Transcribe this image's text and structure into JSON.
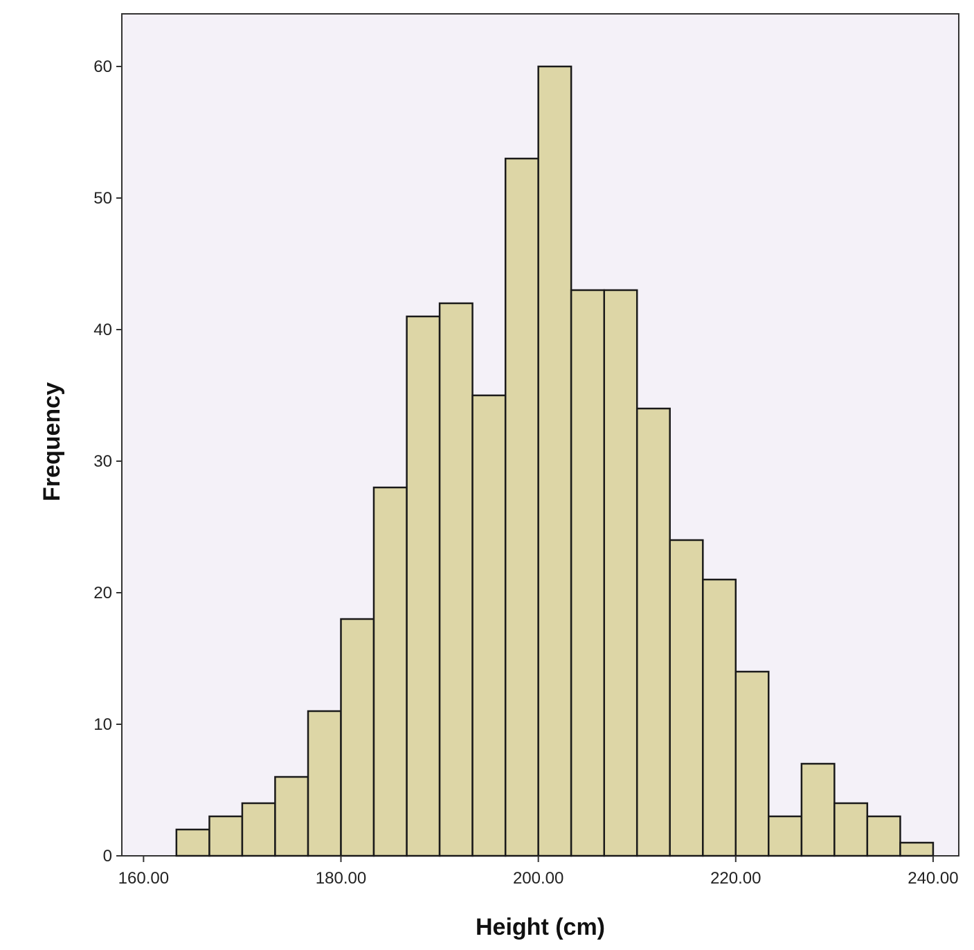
{
  "chart_data": {
    "type": "bar",
    "title": "",
    "xlabel": "Height (cm)",
    "ylabel": "Frequency",
    "xlim": [
      157.8,
      242.6
    ],
    "ylim": [
      0,
      64
    ],
    "grid": false,
    "legend": "none",
    "bin_width": 3.333,
    "x_ticks": [
      {
        "value": 160,
        "label": "160.00"
      },
      {
        "value": 180,
        "label": "180.00"
      },
      {
        "value": 200,
        "label": "200.00"
      },
      {
        "value": 220,
        "label": "220.00"
      },
      {
        "value": 240,
        "label": "240.00"
      }
    ],
    "y_ticks": [
      {
        "value": 0,
        "label": "0"
      },
      {
        "value": 10,
        "label": "10"
      },
      {
        "value": 20,
        "label": "20"
      },
      {
        "value": 30,
        "label": "30"
      },
      {
        "value": 40,
        "label": "40"
      },
      {
        "value": 50,
        "label": "50"
      },
      {
        "value": 60,
        "label": "60"
      }
    ],
    "bins": [
      {
        "x0": 163.33,
        "x1": 166.67,
        "count": 2
      },
      {
        "x0": 166.67,
        "x1": 170.0,
        "count": 3
      },
      {
        "x0": 170.0,
        "x1": 173.33,
        "count": 4
      },
      {
        "x0": 173.33,
        "x1": 176.67,
        "count": 6
      },
      {
        "x0": 176.67,
        "x1": 180.0,
        "count": 11
      },
      {
        "x0": 180.0,
        "x1": 183.33,
        "count": 18
      },
      {
        "x0": 183.33,
        "x1": 186.67,
        "count": 28
      },
      {
        "x0": 186.67,
        "x1": 190.0,
        "count": 41
      },
      {
        "x0": 190.0,
        "x1": 193.33,
        "count": 42
      },
      {
        "x0": 193.33,
        "x1": 196.67,
        "count": 35
      },
      {
        "x0": 196.67,
        "x1": 200.0,
        "count": 53
      },
      {
        "x0": 200.0,
        "x1": 203.33,
        "count": 60
      },
      {
        "x0": 203.33,
        "x1": 206.67,
        "count": 43
      },
      {
        "x0": 206.67,
        "x1": 210.0,
        "count": 43
      },
      {
        "x0": 210.0,
        "x1": 213.33,
        "count": 34
      },
      {
        "x0": 213.33,
        "x1": 216.67,
        "count": 24
      },
      {
        "x0": 216.67,
        "x1": 220.0,
        "count": 21
      },
      {
        "x0": 220.0,
        "x1": 223.33,
        "count": 14
      },
      {
        "x0": 223.33,
        "x1": 226.67,
        "count": 3
      },
      {
        "x0": 226.67,
        "x1": 230.0,
        "count": 7
      },
      {
        "x0": 230.0,
        "x1": 233.33,
        "count": 4
      },
      {
        "x0": 233.33,
        "x1": 236.67,
        "count": 3
      },
      {
        "x0": 236.67,
        "x1": 240.0,
        "count": 1
      }
    ],
    "colors": {
      "bar_fill": "#ddd6a6",
      "bar_stroke": "#1a1a1a",
      "plot_background": "#f4f1f8",
      "axis": "#333333"
    }
  }
}
